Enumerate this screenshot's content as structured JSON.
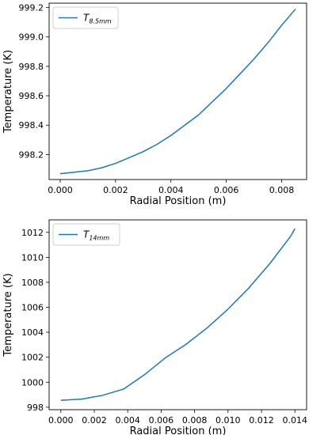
{
  "chart_data": [
    {
      "type": "line",
      "xlabel": "Radial Position (m)",
      "ylabel": "Temperature (K)",
      "xlim": [
        -0.0004,
        0.0089
      ],
      "ylim": [
        998.03,
        999.23
      ],
      "xticks": [
        "0.000",
        "0.002",
        "0.004",
        "0.006",
        "0.008"
      ],
      "xtick_values": [
        0,
        0.002,
        0.004,
        0.006,
        0.008
      ],
      "yticks": [
        "998.2",
        "998.4",
        "998.6",
        "998.8",
        "999.0",
        "999.2"
      ],
      "ytick_values": [
        998.2,
        998.4,
        998.6,
        998.8,
        999.0,
        999.2
      ],
      "grid": false,
      "legend_position": "upper-left",
      "series": [
        {
          "name": "T8.5mm",
          "legend_main": "T",
          "legend_sub": "8.5mm",
          "color": "#1f77b4",
          "x": [
            0.0,
            0.0005,
            0.001,
            0.0015,
            0.002,
            0.0025,
            0.003,
            0.0035,
            0.004,
            0.0045,
            0.005,
            0.0055,
            0.006,
            0.0065,
            0.007,
            0.0075,
            0.008,
            0.0085
          ],
          "y": [
            998.07,
            998.08,
            998.09,
            998.11,
            998.14,
            998.18,
            998.22,
            998.27,
            998.33,
            998.4,
            998.47,
            998.56,
            998.65,
            998.75,
            998.85,
            998.96,
            999.08,
            999.19
          ]
        }
      ]
    },
    {
      "type": "line",
      "xlabel": "Radial Position (m)",
      "ylabel": "Temperature (K)",
      "xlim": [
        -0.0007,
        0.0147
      ],
      "ylim": [
        997.8,
        1013.0
      ],
      "xticks": [
        "0.000",
        "0.002",
        "0.004",
        "0.006",
        "0.008",
        "0.010",
        "0.012",
        "0.014"
      ],
      "xtick_values": [
        0,
        0.002,
        0.004,
        0.006,
        0.008,
        0.01,
        0.012,
        0.014
      ],
      "yticks": [
        "998",
        "1000",
        "1002",
        "1004",
        "1006",
        "1008",
        "1010",
        "1012"
      ],
      "ytick_values": [
        998,
        1000,
        1002,
        1004,
        1006,
        1008,
        1010,
        1012
      ],
      "grid": false,
      "legend_position": "upper-left",
      "series": [
        {
          "name": "T14mm",
          "legend_main": "T",
          "legend_sub": "14mm",
          "color": "#1f77b4",
          "x": [
            0.0,
            0.00125,
            0.0025,
            0.00375,
            0.005,
            0.00625,
            0.0075,
            0.00875,
            0.01,
            0.01125,
            0.0125,
            0.01375,
            0.014
          ],
          "y": [
            998.55,
            998.65,
            998.95,
            999.45,
            1000.6,
            1001.95,
            1003.05,
            1004.35,
            1005.85,
            1007.55,
            1009.5,
            1011.7,
            1012.3
          ]
        }
      ]
    }
  ]
}
